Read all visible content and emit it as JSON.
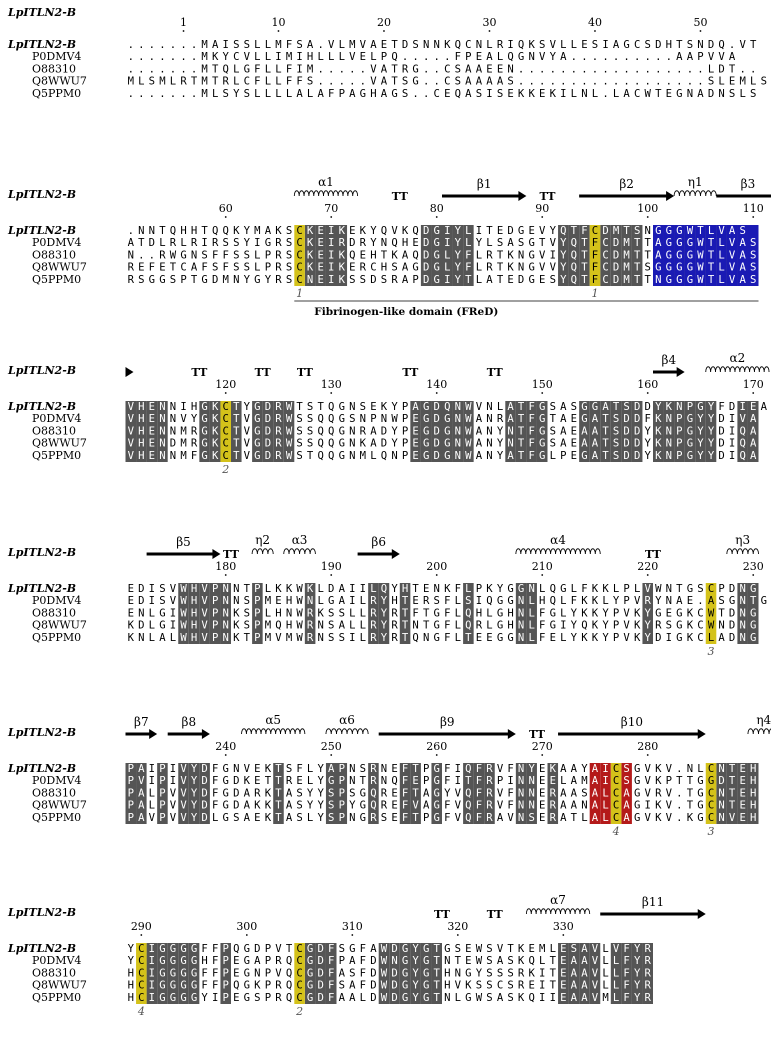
{
  "title": "LpITLN2-B",
  "colors": {
    "identical": "#555555",
    "cys_highlight": "#d4c21a",
    "blue_block": "#1a1ab4",
    "red_block": "#b41a1a",
    "box": "#888888"
  },
  "domain_label": "Fibrinogen-like domain (FReD)",
  "blocks": [
    {
      "start": 1,
      "ticks": [
        {
          "pos": 6,
          "label": "1"
        },
        {
          "pos": 15,
          "label": "10"
        },
        {
          "pos": 25,
          "label": "20"
        },
        {
          "pos": 35,
          "label": "30"
        },
        {
          "pos": 45,
          "label": "40"
        },
        {
          "pos": 55,
          "label": "50"
        }
      ],
      "ss": [],
      "rows": [
        {
          "name": "LpITLN2-B",
          "seq": ".......MAISSLLMFSA.VLMVAETDSNNKQCNLRIQKSVLLESIAGCSDHTSNDQ.VT"
        },
        {
          "name": "P0DMV4",
          "seq": ".......MKYCVLLIMIHLLLVELPQ.....FPEALQGNVYA..........AAPVVA"
        },
        {
          "name": "O88310",
          "seq": ".......MTQLGFLLFIM.....VATRG..CSAAEEN..................LDT.."
        },
        {
          "name": "Q8WWU7",
          "seq": "MLSMLRTMTRLCFLLFFS.....VATSG..CSAAAAS..................SLEMLS"
        },
        {
          "name": "Q5PPM0",
          "seq": ".......MLSYSLLLLALAFPAGHAGS..CEQASISEKKEKILNL.LACWTEGNADNSLS"
        }
      ],
      "cys_marks": [],
      "dark_cols": [],
      "yellow_cols": []
    },
    {
      "start": 51,
      "ticks": [
        {
          "pos": 10,
          "label": "60"
        },
        {
          "pos": 20,
          "label": "70"
        },
        {
          "pos": 30,
          "label": "80"
        },
        {
          "pos": 40,
          "label": "90"
        },
        {
          "pos": 50,
          "label": "100"
        },
        {
          "pos": 60,
          "label": "110"
        }
      ],
      "ss": [
        {
          "type": "helix",
          "from": 17,
          "to": 22,
          "label": "α1"
        },
        {
          "type": "turn",
          "at": 26,
          "label": "TT"
        },
        {
          "type": "arrow",
          "from": 31,
          "to": 38,
          "label": "β1"
        },
        {
          "type": "turn",
          "at": 40,
          "label": "TT"
        },
        {
          "type": "arrow",
          "from": 44,
          "to": 52,
          "label": "β2"
        },
        {
          "type": "helix",
          "from": 53,
          "to": 56,
          "label": "η1"
        },
        {
          "type": "arrow",
          "from": 57,
          "to": 62,
          "label": "β3"
        }
      ],
      "rows": [
        {
          "name": "LpITLN2-B",
          "seq": ".NNTQHHTQQKYMAKSCKEIKEKYQVKQDGIYLITEDGEVYQTFCDMTSNGGGWTLVAS"
        },
        {
          "name": "P0DMV4",
          "seq": "ATDLRLRIRSSYIGRSCKEIRDRYNQHEDGIYLYLSASGTVYQTFCDMTTAGGGWTLVAS"
        },
        {
          "name": "O88310",
          "seq": "N..RWGNSFFSSLPRSCKEIKQEHTKAQDGLYFLRTKNGVIYQTFCDMTTAGGGWTLVAS"
        },
        {
          "name": "Q8WWU7",
          "seq": "REFETCAFSFSSLPRSCKEIKERCHSAGDGLYFLRTKNGVVYQTFCDMTSGGGGWTLVAS"
        },
        {
          "name": "Q5PPM0",
          "seq": "RSGGSPTGDMNYGYRSCNEIKSSDSRAPDGIYTLATEDGESYQTFCDMTTNGGGWTLVAS"
        }
      ],
      "cys_marks": [
        {
          "pos": 17,
          "label": "1"
        },
        {
          "pos": 45,
          "label": "1"
        }
      ],
      "dark_cols": [
        18,
        19,
        20,
        21,
        29,
        30,
        31,
        32,
        33,
        42,
        43,
        44,
        46,
        47,
        48,
        49,
        52,
        53,
        54,
        55,
        56,
        57,
        58,
        59,
        60
      ],
      "yellow_cols": [
        17,
        45
      ],
      "blue_cols": [
        51,
        52,
        53,
        54,
        55,
        56,
        57,
        58,
        59,
        60
      ]
    },
    {
      "start": 111,
      "ticks": [
        {
          "pos": 10,
          "label": "120"
        },
        {
          "pos": 20,
          "label": "130"
        },
        {
          "pos": 30,
          "label": "140"
        },
        {
          "pos": 40,
          "label": "150"
        },
        {
          "pos": 50,
          "label": "160"
        },
        {
          "pos": 60,
          "label": "170"
        }
      ],
      "ss": [
        {
          "type": "arrowhead",
          "at": 1,
          "label": ""
        },
        {
          "type": "turn",
          "at": 7,
          "label": "TT"
        },
        {
          "type": "turn",
          "at": 13,
          "label": "TT"
        },
        {
          "type": "turn",
          "at": 17,
          "label": "TT"
        },
        {
          "type": "turn",
          "at": 27,
          "label": "TT"
        },
        {
          "type": "turn",
          "at": 35,
          "label": "TT"
        },
        {
          "type": "arrow",
          "from": 51,
          "to": 53,
          "label": "β4"
        },
        {
          "type": "helix",
          "from": 56,
          "to": 61,
          "label": "α2"
        }
      ],
      "rows": [
        {
          "name": "LpITLN2-B",
          "seq": "VHENNIHGKCTYGDRWTSTQGNSEKYPAGDQNWVNLATFGSASGGATSDDYKNPGYFDIEA"
        },
        {
          "name": "P0DMV4",
          "seq": "VHENNVYGKCTVGDRWSSQQGSNPNWPEGDGNWANRATFGTAEGATSDDFKNPGYYDIVA"
        },
        {
          "name": "O88310",
          "seq": "VHENNMRGKCTVGDRWSSQQGNRADYPEGDGNWANYNTFGSAEAATSDDYKNPGYYDIQA"
        },
        {
          "name": "Q8WWU7",
          "seq": "VHENDMRGKCTVGDRWSSQQGNKADYPEGDGNWANYNTFGSAEAATSDDYKNPGYYDIQA"
        },
        {
          "name": "Q5PPM0",
          "seq": "VHENNMFGKCTVGDRWSTQQGNMLQNPEGDGNWANYATFGLPEGATSDDYKNPGYYDIQA"
        }
      ],
      "cys_marks": [
        {
          "pos": 10,
          "label": "2"
        }
      ],
      "dark_cols": [
        1,
        2,
        3,
        4,
        8,
        9,
        11,
        13,
        14,
        15,
        16,
        28,
        29,
        30,
        31,
        32,
        33,
        37,
        38,
        39,
        40,
        44,
        45,
        46,
        47,
        48,
        49,
        51,
        52,
        53,
        54,
        55,
        56,
        59,
        60
      ],
      "yellow_cols": [
        10
      ]
    },
    {
      "start": 171,
      "ticks": [
        {
          "pos": 10,
          "label": "180"
        },
        {
          "pos": 20,
          "label": "190"
        },
        {
          "pos": 30,
          "label": "200"
        },
        {
          "pos": 40,
          "label": "210"
        },
        {
          "pos": 50,
          "label": "220"
        },
        {
          "pos": 60,
          "label": "230"
        }
      ],
      "ss": [
        {
          "type": "arrow",
          "from": 3,
          "to": 9,
          "label": "β5"
        },
        {
          "type": "turn",
          "at": 10,
          "label": "TT"
        },
        {
          "type": "helix",
          "from": 13,
          "to": 14,
          "label": "η2"
        },
        {
          "type": "helix",
          "from": 16,
          "to": 18,
          "label": "α3"
        },
        {
          "type": "arrow",
          "from": 23,
          "to": 26,
          "label": "β6"
        },
        {
          "type": "helix",
          "from": 38,
          "to": 45,
          "label": "α4"
        },
        {
          "type": "turn",
          "at": 50,
          "label": "TT"
        },
        {
          "type": "helix",
          "from": 58,
          "to": 60,
          "label": "η3"
        }
      ],
      "rows": [
        {
          "name": "LpITLN2-B",
          "seq": "EDISVWHVPNNTPLKKWKLDAIILQYHTENKFLPKYGGNLQGLFKKLPLVWNTGSCPDNG"
        },
        {
          "name": "P0DMV4",
          "seq": "EDISVWHVPNNSPMEHWNLGAILRYHTERSFLSIQGGNLHQLFKKLYPVRYNAE.ASGNTG"
        },
        {
          "name": "O88310",
          "seq": "ENLGIWHVPNKSPLHNWRKSSLLRYRTFTGFLQHLGHNLFGLYKKYPVKYGEGKCWTDNG"
        },
        {
          "name": "Q8WWU7",
          "seq": "KDLGIWHVPNKSPMQHWRNSALLRYRTNTGFLQRLGHNLFGIYQKYPVKYRSGKCWNDNG"
        },
        {
          "name": "Q5PPM0",
          "seq": "KNLALWHVPNKTPMVMWRNSSILRYRTQNGFLTEEGGNLFELYKKYPVKYDIGKCLADNG"
        }
      ],
      "cys_marks": [
        {
          "pos": 56,
          "label": "3"
        }
      ],
      "dark_cols": [
        6,
        7,
        8,
        9,
        10,
        13,
        18,
        24,
        25,
        27,
        33,
        38,
        39,
        50,
        59,
        60
      ],
      "yellow_cols": [
        56
      ]
    },
    {
      "start": 231,
      "ticks": [
        {
          "pos": 10,
          "label": "240"
        },
        {
          "pos": 20,
          "label": "250"
        },
        {
          "pos": 30,
          "label": "260"
        },
        {
          "pos": 40,
          "label": "270"
        },
        {
          "pos": 50,
          "label": "280"
        }
      ],
      "ss": [
        {
          "type": "arrow",
          "from": 1,
          "to": 3,
          "label": "β7"
        },
        {
          "type": "arrow",
          "from": 5,
          "to": 8,
          "label": "β8"
        },
        {
          "type": "helix",
          "from": 12,
          "to": 17,
          "label": "α5"
        },
        {
          "type": "helix",
          "from": 20,
          "to": 23,
          "label": "α6"
        },
        {
          "type": "arrow",
          "from": 25,
          "to": 37,
          "label": "β9"
        },
        {
          "type": "turn",
          "at": 39,
          "label": "TT"
        },
        {
          "type": "arrow",
          "from": 42,
          "to": 55,
          "label": "β10"
        },
        {
          "type": "helix",
          "from": 60,
          "to": 62,
          "label": "η4"
        }
      ],
      "rows": [
        {
          "name": "LpITLN2-B",
          "seq": "PAIPIVYDFGNVEKTSFLYAPNSRNEFTPGFIQFRVFNYEKAAYAICSGVKV.NLCNTEH"
        },
        {
          "name": "P0DMV4",
          "seq": "PVIPIVYDFGDKETTRELYGPNTRNQFEPGFITFRPINNEELAMAICSGVKPTTGGDTEH"
        },
        {
          "name": "O88310",
          "seq": "PALPVVYDFGDARKTASYYSPSGQREFTAGYVQFRVFNNERAASALCAGVRV.TGCNTEH"
        },
        {
          "name": "Q8WWU7",
          "seq": "PALPVVYDFGDAKKTASYYSPYGQREFVAGFVQFRVFNNERAANALCAGIKV.TGCNTEH"
        },
        {
          "name": "Q5PPM0",
          "seq": "PAVPVVYDLGSAEKTASLYSPNGRSEFTPGFVQFRAVNSERATLALCAGVKV.KGCNVEH"
        }
      ],
      "cys_marks": [
        {
          "pos": 47,
          "label": "4"
        },
        {
          "pos": 56,
          "label": "3"
        }
      ],
      "dark_cols": [
        1,
        2,
        4,
        6,
        7,
        8,
        15,
        20,
        21,
        24,
        27,
        28,
        30,
        33,
        34,
        35,
        38,
        39,
        41,
        57,
        58,
        59,
        60
      ],
      "yellow_cols": [
        47,
        56
      ],
      "red_cols": [
        45,
        46,
        48
      ]
    },
    {
      "start": 289,
      "ticks": [
        {
          "pos": 2,
          "label": "290"
        },
        {
          "pos": 12,
          "label": "300"
        },
        {
          "pos": 22,
          "label": "310"
        },
        {
          "pos": 32,
          "label": "320"
        },
        {
          "pos": 42,
          "label": "330"
        }
      ],
      "ss": [
        {
          "type": "turn",
          "at": 30,
          "label": "TT"
        },
        {
          "type": "turn",
          "at": 35,
          "label": "TT"
        },
        {
          "type": "helix",
          "from": 39,
          "to": 44,
          "label": "α7"
        },
        {
          "type": "arrow",
          "from": 46,
          "to": 55,
          "label": "β11"
        }
      ],
      "rows": [
        {
          "name": "LpITLN2-B",
          "seq": "YCIGGGGFFPQGDPVTCGDFSGFAWDGYGTGSEWSVTKEMLESAVLVFYR"
        },
        {
          "name": "P0DMV4",
          "seq": "YCIGGGGHFPEGAPRQCGDFPAFDWNGYGTNTEWSASKQLTEAAVLLFYR"
        },
        {
          "name": "O88310",
          "seq": "HCIGGGGFFPEGNPVQCGDFASFDWDGYGTHNGYSSSRKITEAAVLLFYR"
        },
        {
          "name": "Q8WWU7",
          "seq": "HCIGGGGFFPQGKPRQCGDFSAFDWDGYGTHVKSSCSREITEAAVLLFYR"
        },
        {
          "name": "Q5PPM0",
          "seq": "HCIGGGGYIPEGSPRQCGDFAALDWDGYGTNLGWSASKQIIEAAVMLFYR"
        }
      ],
      "cys_marks": [
        {
          "pos": 2,
          "label": "4"
        },
        {
          "pos": 17,
          "label": "2"
        }
      ],
      "dark_cols": [
        3,
        4,
        5,
        6,
        7,
        10,
        18,
        19,
        20,
        25,
        26,
        27,
        28,
        29,
        30,
        42,
        43,
        44,
        45,
        47,
        48,
        49,
        50
      ],
      "yellow_cols": [
        2,
        17
      ]
    }
  ]
}
